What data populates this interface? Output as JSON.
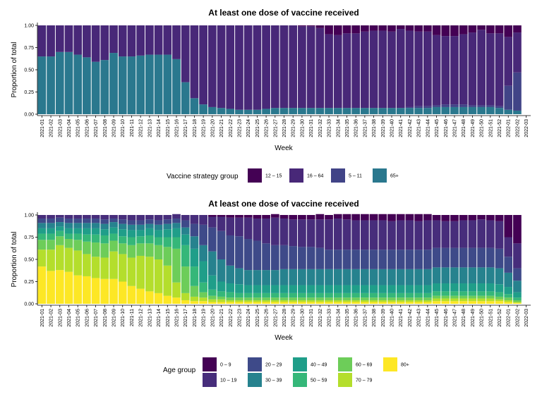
{
  "chart_data": [
    {
      "type": "bar",
      "stacked": true,
      "normalized": true,
      "title": "At least one dose of vaccine received",
      "xlabel": "Week",
      "ylabel": "Proportion of total",
      "ylim": [
        0,
        1
      ],
      "yticks": [
        "0.00",
        "0.25",
        "0.50",
        "0.75",
        "1.00"
      ],
      "legend": {
        "title": "Vaccine strategy group",
        "position": "bottom"
      },
      "categories": [
        "2021-01",
        "2021-02",
        "2021-03",
        "2021-04",
        "2021-05",
        "2021-06",
        "2021-07",
        "2021-08",
        "2021-09",
        "2021-10",
        "2021-11",
        "2021-12",
        "2021-13",
        "2021-14",
        "2021-15",
        "2021-16",
        "2021-17",
        "2021-18",
        "2021-19",
        "2021-20",
        "2021-21",
        "2021-22",
        "2021-23",
        "2021-24",
        "2021-25",
        "2021-26",
        "2021-27",
        "2021-28",
        "2021-29",
        "2021-30",
        "2021-31",
        "2021-32",
        "2021-33",
        "2021-34",
        "2021-35",
        "2021-36",
        "2021-37",
        "2021-38",
        "2021-39",
        "2021-40",
        "2021-41",
        "2021-42",
        "2021-43",
        "2021-44",
        "2021-45",
        "2021-46",
        "2021-47",
        "2021-48",
        "2021-49",
        "2021-50",
        "2021-51",
        "2021-52",
        "2022-01",
        "2022-02",
        "2022-03"
      ],
      "series": [
        {
          "name": "65+",
          "color": "#2A788E",
          "values": [
            0.65,
            0.65,
            0.7,
            0.7,
            0.67,
            0.64,
            0.59,
            0.61,
            0.69,
            0.65,
            0.65,
            0.66,
            0.67,
            0.67,
            0.67,
            0.62,
            0.36,
            0.18,
            0.11,
            0.08,
            0.07,
            0.06,
            0.05,
            0.05,
            0.05,
            0.06,
            0.07,
            0.07,
            0.07,
            0.07,
            0.07,
            0.07,
            0.07,
            0.07,
            0.07,
            0.07,
            0.07,
            0.07,
            0.07,
            0.07,
            0.07,
            0.07,
            0.07,
            0.07,
            0.08,
            0.08,
            0.08,
            0.08,
            0.08,
            0.08,
            0.08,
            0.07,
            0.05,
            0.04,
            0.0
          ]
        },
        {
          "name": "5 – 11",
          "color": "#414487",
          "values": [
            0,
            0,
            0,
            0,
            0,
            0,
            0,
            0,
            0,
            0,
            0,
            0,
            0,
            0,
            0,
            0,
            0,
            0,
            0,
            0,
            0,
            0,
            0,
            0,
            0,
            0,
            0,
            0,
            0,
            0,
            0,
            0,
            0,
            0,
            0,
            0,
            0,
            0,
            0,
            0,
            0.0,
            0.01,
            0.02,
            0.02,
            0.02,
            0.03,
            0.03,
            0.03,
            0.02,
            0.02,
            0.02,
            0.02,
            0.27,
            0.43,
            0.0
          ]
        },
        {
          "name": "16 – 64",
          "color": "#482878",
          "values": [
            0.35,
            0.35,
            0.3,
            0.3,
            0.33,
            0.36,
            0.41,
            0.39,
            0.31,
            0.35,
            0.35,
            0.34,
            0.33,
            0.33,
            0.33,
            0.38,
            0.64,
            0.82,
            0.89,
            0.92,
            0.93,
            0.94,
            0.95,
            0.95,
            0.95,
            0.94,
            0.93,
            0.93,
            0.93,
            0.92,
            0.92,
            0.9,
            0.83,
            0.82,
            0.84,
            0.84,
            0.86,
            0.87,
            0.87,
            0.86,
            0.89,
            0.86,
            0.84,
            0.84,
            0.79,
            0.77,
            0.77,
            0.79,
            0.82,
            0.85,
            0.81,
            0.82,
            0.55,
            0.45,
            0.0
          ]
        },
        {
          "name": "12 – 15",
          "color": "#440154",
          "values": [
            0,
            0,
            0,
            0,
            0,
            0,
            0,
            0,
            0,
            0,
            0,
            0,
            0,
            0,
            0,
            0,
            0,
            0,
            0,
            0,
            0,
            0,
            0,
            0,
            0,
            0,
            0,
            0,
            0,
            0.01,
            0.01,
            0.03,
            0.1,
            0.11,
            0.09,
            0.09,
            0.07,
            0.06,
            0.06,
            0.07,
            0.04,
            0.06,
            0.07,
            0.07,
            0.11,
            0.12,
            0.12,
            0.1,
            0.08,
            0.05,
            0.09,
            0.09,
            0.13,
            0.08,
            0.0
          ]
        }
      ],
      "legend_order": [
        "12 – 15",
        "16 – 64",
        "5 – 11",
        "65+"
      ]
    },
    {
      "type": "bar",
      "stacked": true,
      "normalized": true,
      "title": "At least one dose of vaccine received",
      "xlabel": "Week",
      "ylabel": "Proportion of total",
      "ylim": [
        0,
        1
      ],
      "yticks": [
        "0.00",
        "0.25",
        "0.50",
        "0.75",
        "1.00"
      ],
      "legend": {
        "title": "Age group",
        "position": "bottom"
      },
      "categories": [
        "2021-01",
        "2021-02",
        "2021-03",
        "2021-04",
        "2021-05",
        "2021-06",
        "2021-07",
        "2021-08",
        "2021-09",
        "2021-10",
        "2021-11",
        "2021-12",
        "2021-13",
        "2021-14",
        "2021-15",
        "2021-16",
        "2021-17",
        "2021-18",
        "2021-19",
        "2021-20",
        "2021-21",
        "2021-22",
        "2021-23",
        "2021-24",
        "2021-25",
        "2021-26",
        "2021-27",
        "2021-28",
        "2021-29",
        "2021-30",
        "2021-31",
        "2021-32",
        "2021-33",
        "2021-34",
        "2021-35",
        "2021-36",
        "2021-37",
        "2021-38",
        "2021-39",
        "2021-40",
        "2021-41",
        "2021-42",
        "2021-43",
        "2021-44",
        "2021-45",
        "2021-46",
        "2021-47",
        "2021-48",
        "2021-49",
        "2021-50",
        "2021-51",
        "2021-52",
        "2022-01",
        "2022-02",
        "2022-03"
      ],
      "series": [
        {
          "name": "80+",
          "color": "#FDE725",
          "values": [
            0.42,
            0.37,
            0.38,
            0.36,
            0.32,
            0.31,
            0.29,
            0.28,
            0.28,
            0.25,
            0.2,
            0.17,
            0.14,
            0.12,
            0.09,
            0.07,
            0.04,
            0.03,
            0.03,
            0.02,
            0.02,
            0.02,
            0.02,
            0.02,
            0.02,
            0.02,
            0.02,
            0.02,
            0.02,
            0.02,
            0.02,
            0.02,
            0.02,
            0.02,
            0.02,
            0.02,
            0.02,
            0.02,
            0.02,
            0.02,
            0.02,
            0.02,
            0.02,
            0.02,
            0.03,
            0.03,
            0.03,
            0.03,
            0.03,
            0.03,
            0.03,
            0.03,
            0.02,
            0.01,
            0.0
          ]
        },
        {
          "name": "70 – 79",
          "color": "#B4DE2C",
          "values": [
            0.19,
            0.24,
            0.28,
            0.27,
            0.28,
            0.25,
            0.24,
            0.24,
            0.31,
            0.31,
            0.32,
            0.37,
            0.39,
            0.38,
            0.34,
            0.17,
            0.08,
            0.05,
            0.04,
            0.03,
            0.03,
            0.02,
            0.02,
            0.02,
            0.02,
            0.02,
            0.02,
            0.02,
            0.02,
            0.02,
            0.02,
            0.02,
            0.02,
            0.02,
            0.02,
            0.02,
            0.02,
            0.02,
            0.02,
            0.02,
            0.02,
            0.02,
            0.02,
            0.02,
            0.03,
            0.03,
            0.03,
            0.03,
            0.03,
            0.03,
            0.03,
            0.02,
            0.02,
            0.01,
            0.0
          ]
        },
        {
          "name": "60 – 69",
          "color": "#6DCD59",
          "values": [
            0.11,
            0.11,
            0.1,
            0.1,
            0.12,
            0.14,
            0.16,
            0.16,
            0.12,
            0.12,
            0.14,
            0.14,
            0.15,
            0.16,
            0.21,
            0.38,
            0.3,
            0.12,
            0.06,
            0.04,
            0.03,
            0.03,
            0.03,
            0.03,
            0.03,
            0.03,
            0.03,
            0.03,
            0.03,
            0.03,
            0.03,
            0.03,
            0.03,
            0.03,
            0.03,
            0.03,
            0.03,
            0.03,
            0.03,
            0.03,
            0.03,
            0.03,
            0.03,
            0.03,
            0.03,
            0.03,
            0.03,
            0.03,
            0.03,
            0.03,
            0.03,
            0.03,
            0.03,
            0.02,
            0.0
          ]
        },
        {
          "name": "50 – 59",
          "color": "#35B779",
          "values": [
            0.07,
            0.07,
            0.06,
            0.06,
            0.07,
            0.08,
            0.09,
            0.09,
            0.08,
            0.08,
            0.09,
            0.08,
            0.09,
            0.09,
            0.11,
            0.13,
            0.24,
            0.22,
            0.11,
            0.07,
            0.06,
            0.06,
            0.05,
            0.05,
            0.05,
            0.05,
            0.05,
            0.05,
            0.05,
            0.05,
            0.05,
            0.05,
            0.05,
            0.05,
            0.05,
            0.05,
            0.05,
            0.05,
            0.05,
            0.05,
            0.05,
            0.05,
            0.05,
            0.05,
            0.05,
            0.05,
            0.05,
            0.05,
            0.05,
            0.05,
            0.05,
            0.05,
            0.04,
            0.03,
            0.0
          ]
        },
        {
          "name": "40 – 49",
          "color": "#1F9E89",
          "values": [
            0.06,
            0.06,
            0.05,
            0.06,
            0.06,
            0.07,
            0.07,
            0.07,
            0.07,
            0.08,
            0.08,
            0.07,
            0.08,
            0.08,
            0.09,
            0.1,
            0.12,
            0.2,
            0.24,
            0.16,
            0.11,
            0.1,
            0.1,
            0.09,
            0.09,
            0.09,
            0.09,
            0.09,
            0.09,
            0.09,
            0.09,
            0.09,
            0.09,
            0.09,
            0.09,
            0.09,
            0.09,
            0.09,
            0.09,
            0.09,
            0.09,
            0.09,
            0.09,
            0.09,
            0.09,
            0.09,
            0.09,
            0.09,
            0.09,
            0.09,
            0.09,
            0.09,
            0.08,
            0.06,
            0.0
          ]
        },
        {
          "name": "30 – 39",
          "color": "#26828E",
          "values": [
            0.06,
            0.06,
            0.05,
            0.06,
            0.06,
            0.06,
            0.06,
            0.06,
            0.06,
            0.06,
            0.06,
            0.06,
            0.05,
            0.06,
            0.06,
            0.06,
            0.08,
            0.14,
            0.18,
            0.27,
            0.25,
            0.2,
            0.18,
            0.17,
            0.17,
            0.17,
            0.17,
            0.18,
            0.18,
            0.18,
            0.18,
            0.18,
            0.18,
            0.18,
            0.18,
            0.18,
            0.18,
            0.18,
            0.18,
            0.18,
            0.18,
            0.18,
            0.18,
            0.18,
            0.18,
            0.18,
            0.18,
            0.18,
            0.18,
            0.18,
            0.18,
            0.18,
            0.16,
            0.13,
            0.0
          ]
        },
        {
          "name": "20 – 29",
          "color": "#3E4A89",
          "values": [
            0.05,
            0.05,
            0.05,
            0.05,
            0.05,
            0.05,
            0.05,
            0.05,
            0.04,
            0.05,
            0.05,
            0.05,
            0.05,
            0.05,
            0.05,
            0.05,
            0.08,
            0.14,
            0.23,
            0.27,
            0.32,
            0.34,
            0.36,
            0.35,
            0.33,
            0.3,
            0.28,
            0.27,
            0.26,
            0.25,
            0.25,
            0.24,
            0.22,
            0.22,
            0.22,
            0.22,
            0.22,
            0.22,
            0.22,
            0.22,
            0.22,
            0.22,
            0.22,
            0.22,
            0.22,
            0.22,
            0.22,
            0.22,
            0.22,
            0.22,
            0.22,
            0.22,
            0.18,
            0.14,
            0.0
          ]
        },
        {
          "name": "10 – 19",
          "color": "#472D7B",
          "values": [
            0.04,
            0.04,
            0.03,
            0.04,
            0.04,
            0.04,
            0.04,
            0.05,
            0.04,
            0.05,
            0.06,
            0.06,
            0.05,
            0.06,
            0.05,
            0.05,
            0.06,
            0.1,
            0.11,
            0.12,
            0.16,
            0.2,
            0.21,
            0.24,
            0.25,
            0.28,
            0.31,
            0.3,
            0.3,
            0.31,
            0.31,
            0.32,
            0.34,
            0.35,
            0.34,
            0.33,
            0.33,
            0.33,
            0.33,
            0.32,
            0.33,
            0.33,
            0.32,
            0.33,
            0.31,
            0.3,
            0.3,
            0.31,
            0.31,
            0.32,
            0.31,
            0.31,
            0.22,
            0.28,
            0.0
          ]
        },
        {
          "name": "0 – 9",
          "color": "#440154",
          "values": [
            0,
            0,
            0,
            0,
            0,
            0,
            0,
            0,
            0,
            0,
            0,
            0,
            0,
            0,
            0,
            0,
            0,
            0,
            0,
            0.02,
            0.02,
            0.03,
            0.03,
            0.03,
            0.04,
            0.04,
            0.04,
            0.04,
            0.05,
            0.05,
            0.05,
            0.06,
            0.05,
            0.05,
            0.06,
            0.07,
            0.07,
            0.07,
            0.07,
            0.08,
            0.07,
            0.07,
            0.08,
            0.07,
            0.06,
            0.07,
            0.07,
            0.06,
            0.06,
            0.05,
            0.06,
            0.07,
            0.25,
            0.32,
            0.0
          ]
        }
      ],
      "legend_order": [
        "0 – 9",
        "10 – 19",
        "20 – 29",
        "30 – 39",
        "40 – 49",
        "50 – 59",
        "60 – 69",
        "70 – 79",
        "80+"
      ]
    }
  ]
}
